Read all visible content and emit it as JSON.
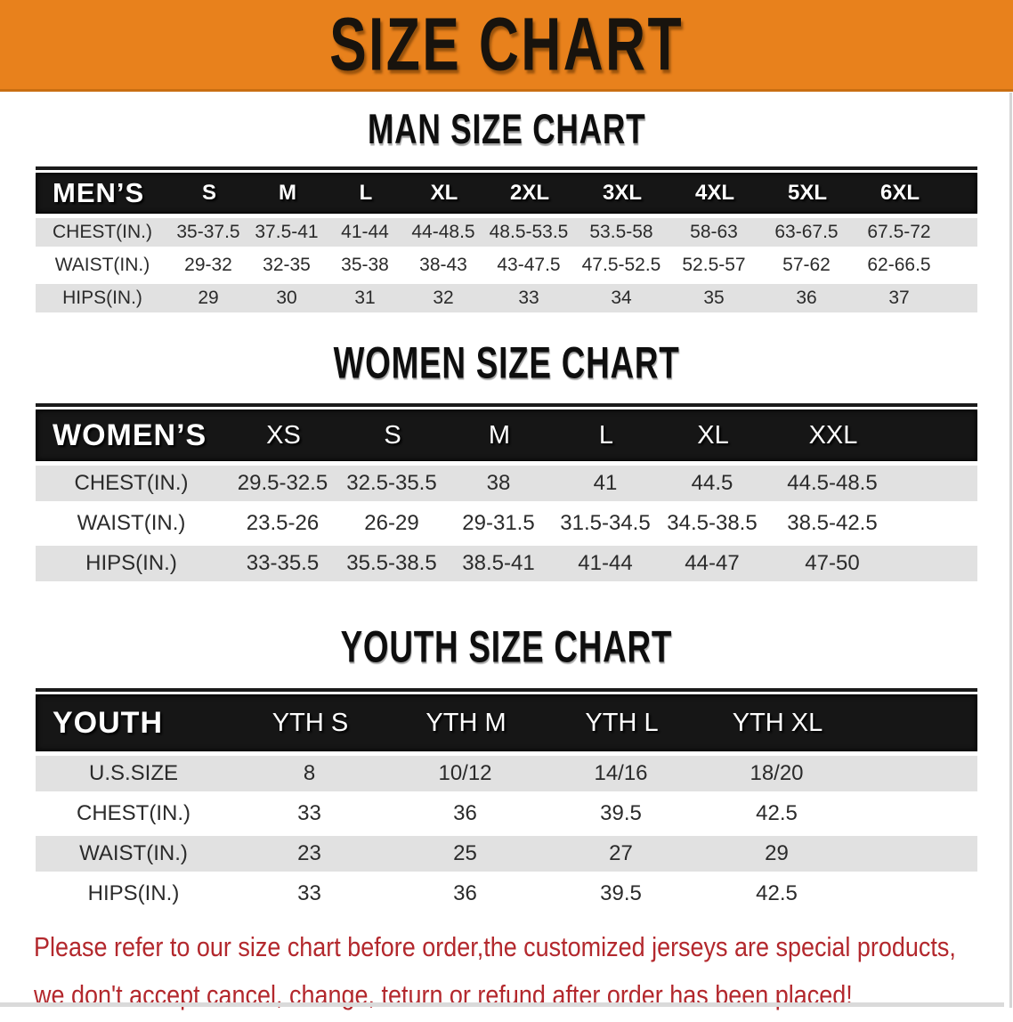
{
  "banner": {
    "title": "SIZE CHART"
  },
  "men": {
    "section_title": "MAN SIZE CHART",
    "header": {
      "label": "MEN’S",
      "sizes": [
        "S",
        "M",
        "L",
        "XL",
        "2XL",
        "3XL",
        "4XL",
        "5XL",
        "6XL"
      ]
    },
    "rows": [
      {
        "label": "CHEST(IN.)",
        "values": [
          "35-37.5",
          "37.5-41",
          "41-44",
          "44-48.5",
          "48.5-53.5",
          "53.5-58",
          "58-63",
          "63-67.5",
          "67.5-72"
        ]
      },
      {
        "label": "WAIST(IN.)",
        "values": [
          "29-32",
          "32-35",
          "35-38",
          "38-43",
          "43-47.5",
          "47.5-52.5",
          "52.5-57",
          "57-62",
          "62-66.5"
        ]
      },
      {
        "label": "HIPS(IN.)",
        "values": [
          "29",
          "30",
          "31",
          "32",
          "33",
          "34",
          "35",
          "36",
          "37"
        ]
      }
    ]
  },
  "women": {
    "section_title": "WOMEN SIZE CHART",
    "header": {
      "label": "WOMEN’S",
      "sizes": [
        "XS",
        "S",
        "M",
        "L",
        "XL",
        "XXL"
      ]
    },
    "rows": [
      {
        "label": "CHEST(IN.)",
        "values": [
          "29.5-32.5",
          "32.5-35.5",
          "38",
          "41",
          "44.5",
          "44.5-48.5"
        ]
      },
      {
        "label": "WAIST(IN.)",
        "values": [
          "23.5-26",
          "26-29",
          "29-31.5",
          "31.5-34.5",
          "34.5-38.5",
          "38.5-42.5"
        ]
      },
      {
        "label": "HIPS(IN.)",
        "values": [
          "33-35.5",
          "35.5-38.5",
          "38.5-41",
          "41-44",
          "44-47",
          "47-50"
        ]
      }
    ]
  },
  "youth": {
    "section_title": "YOUTH SIZE CHART",
    "header": {
      "label": "YOUTH",
      "sizes": [
        "YTH S",
        "YTH M",
        "YTH L",
        "YTH XL"
      ]
    },
    "rows": [
      {
        "label": "U.S.SIZE",
        "values": [
          "8",
          "10/12",
          "14/16",
          "18/20"
        ]
      },
      {
        "label": "CHEST(IN.)",
        "values": [
          "33",
          "36",
          "39.5",
          "42.5"
        ]
      },
      {
        "label": "WAIST(IN.)",
        "values": [
          "23",
          "25",
          "27",
          "29"
        ]
      },
      {
        "label": "HIPS(IN.)",
        "values": [
          "33",
          "36",
          "39.5",
          "42.5"
        ]
      }
    ]
  },
  "disclaimer": {
    "line1": "Please refer to our size chart before order,the customized jerseys are special products,",
    "line2": "we don't accept cancel, change, teturn or refund after order has been placed!"
  },
  "colors": {
    "banner_orange": "#E8811C",
    "table_header_black": "#161616",
    "row_gray": "#E1E1E1",
    "disclaimer_red": "#B3282D"
  }
}
